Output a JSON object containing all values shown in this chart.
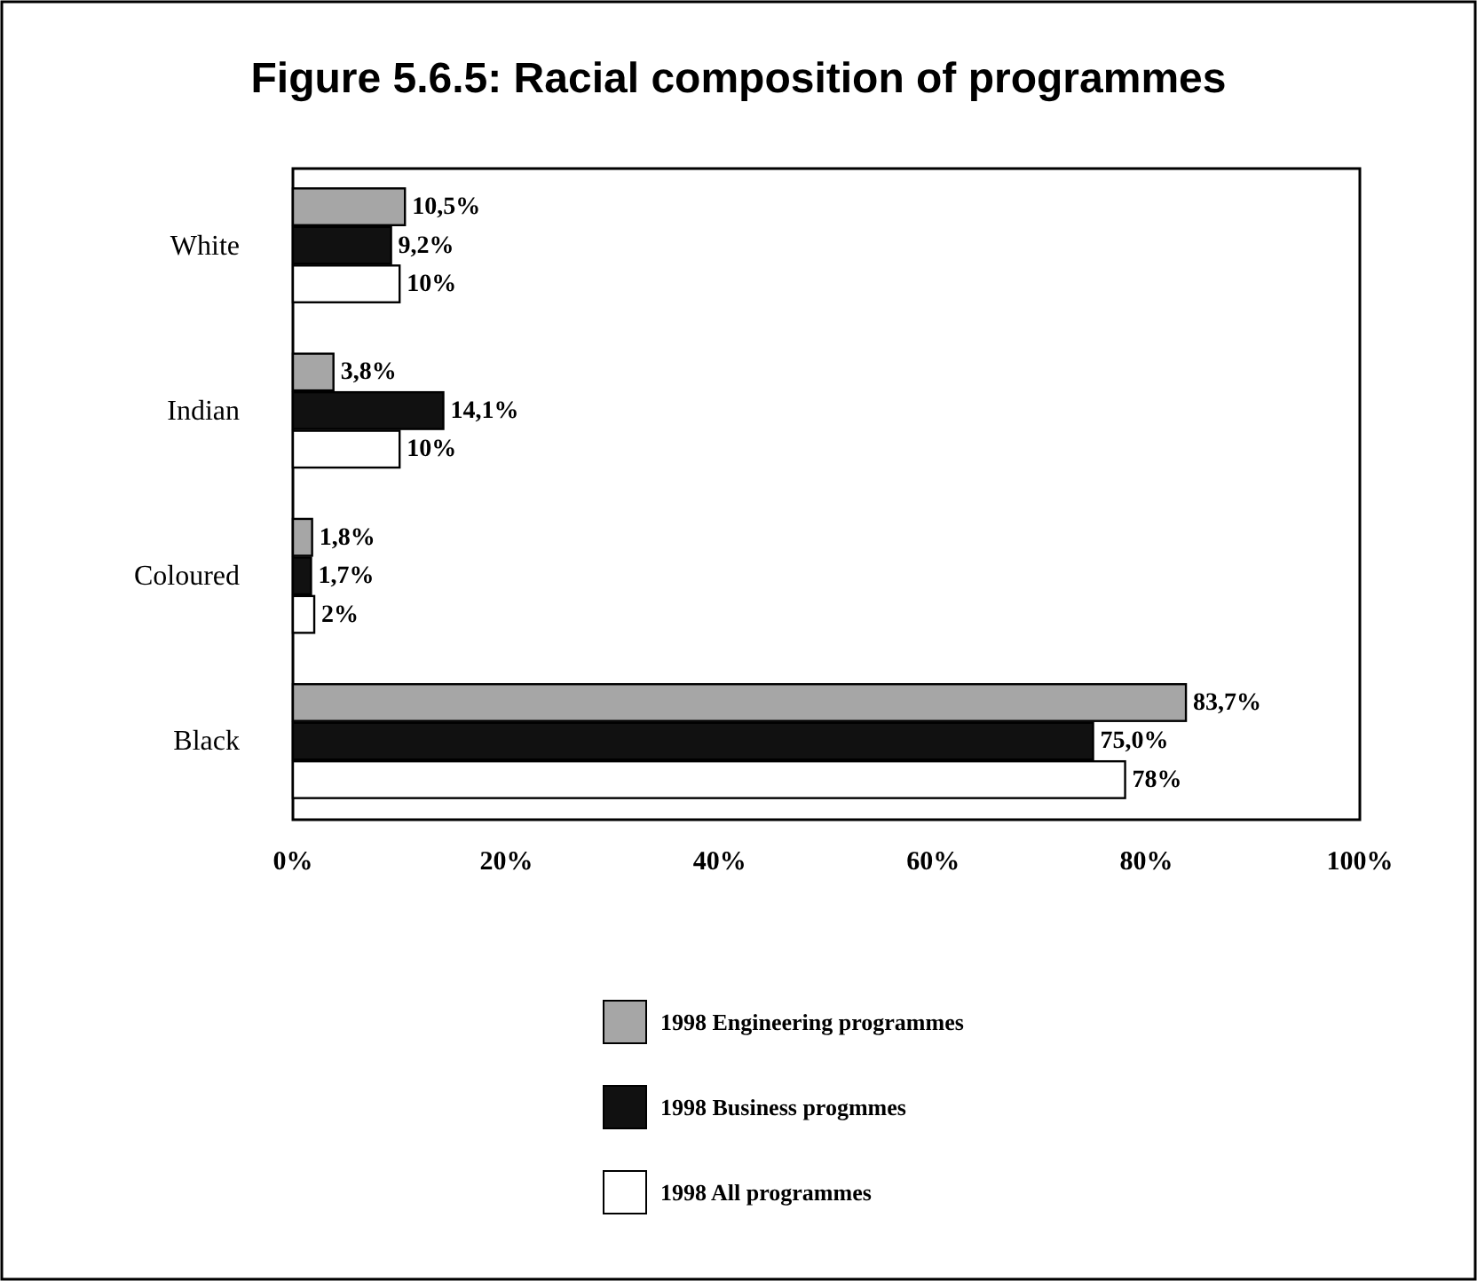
{
  "chart_data": {
    "type": "bar",
    "orientation": "horizontal",
    "title": "Figure 5.6.5: Racial composition of programmes",
    "categories": [
      "White",
      "Indian",
      "Coloured",
      "Black"
    ],
    "series": [
      {
        "name": "1998 Engineering programmes",
        "color": "#a6a6a6",
        "values": [
          10.5,
          3.8,
          1.8,
          83.7
        ],
        "value_labels": [
          "10,5%",
          "3,8%",
          "1,8%",
          "83,7%"
        ]
      },
      {
        "name": "1998 Business progmmes",
        "color": "#111111",
        "values": [
          9.2,
          14.1,
          1.7,
          75.0
        ],
        "value_labels": [
          "9,2%",
          "14,1%",
          "1,7%",
          "75,0%"
        ]
      },
      {
        "name": "1998 All programmes",
        "color": "#ffffff",
        "values": [
          10,
          10,
          2,
          78
        ],
        "value_labels": [
          "10%",
          "10%",
          "2%",
          "78%"
        ]
      }
    ],
    "xlim": [
      0,
      100
    ],
    "xticks": [
      {
        "value": 0,
        "label": "0%"
      },
      {
        "value": 20,
        "label": "20%"
      },
      {
        "value": 40,
        "label": "40%"
      },
      {
        "value": 60,
        "label": "60%"
      },
      {
        "value": 80,
        "label": "80%"
      },
      {
        "value": 100,
        "label": "100%"
      }
    ],
    "grid": false,
    "legend": "bottom"
  }
}
